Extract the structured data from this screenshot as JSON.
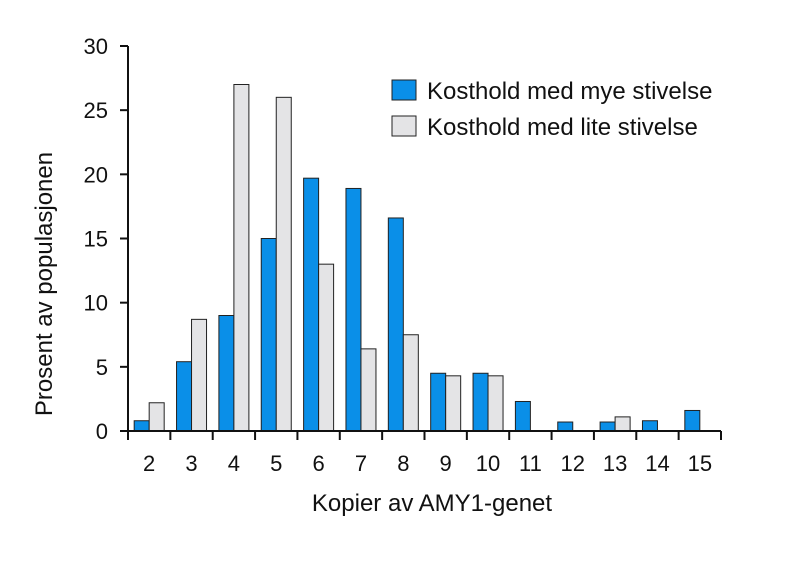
{
  "chart_data": {
    "type": "bar",
    "xlabel": "Kopier av AMY1-genet",
    "ylabel": "Prosent av populasjonen",
    "ylim": [
      0,
      30
    ],
    "yticks": [
      0,
      5,
      10,
      15,
      20,
      25,
      30
    ],
    "categories": [
      "2",
      "3",
      "4",
      "5",
      "6",
      "7",
      "8",
      "9",
      "10",
      "11",
      "12",
      "13",
      "14",
      "15"
    ],
    "series": [
      {
        "name": "Kosthold med mye stivelse",
        "color": "#0A8FE8",
        "values": [
          0.8,
          5.4,
          9.0,
          15.0,
          19.7,
          18.9,
          16.6,
          4.5,
          4.5,
          2.3,
          0.7,
          0.7,
          0.8,
          1.6
        ]
      },
      {
        "name": "Kosthold med lite stivelse",
        "color": "#E4E4E6",
        "values": [
          2.2,
          8.7,
          27.0,
          26.0,
          13.0,
          6.4,
          7.5,
          4.3,
          4.3,
          0,
          0,
          1.1,
          0,
          0
        ]
      }
    ],
    "legend_position": "top-right",
    "grid": false
  }
}
